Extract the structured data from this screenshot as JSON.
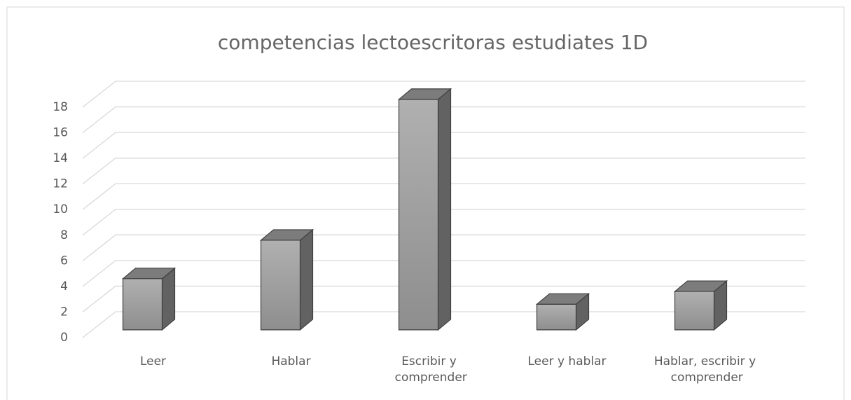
{
  "chart_data": {
    "type": "bar3d",
    "title": "competencias lectoescritoras  estudiates 1D",
    "categories": [
      "Leer",
      "Hablar",
      "Escribir y comprender",
      "Leer y hablar",
      "Hablar, escribir y comprender"
    ],
    "values": [
      4,
      7,
      18,
      2,
      3
    ],
    "color": "#a6a6a6",
    "ylim": [
      0,
      18
    ],
    "yticks": [
      0,
      2,
      4,
      6,
      8,
      10,
      12,
      14,
      16,
      18
    ],
    "grid": true
  }
}
